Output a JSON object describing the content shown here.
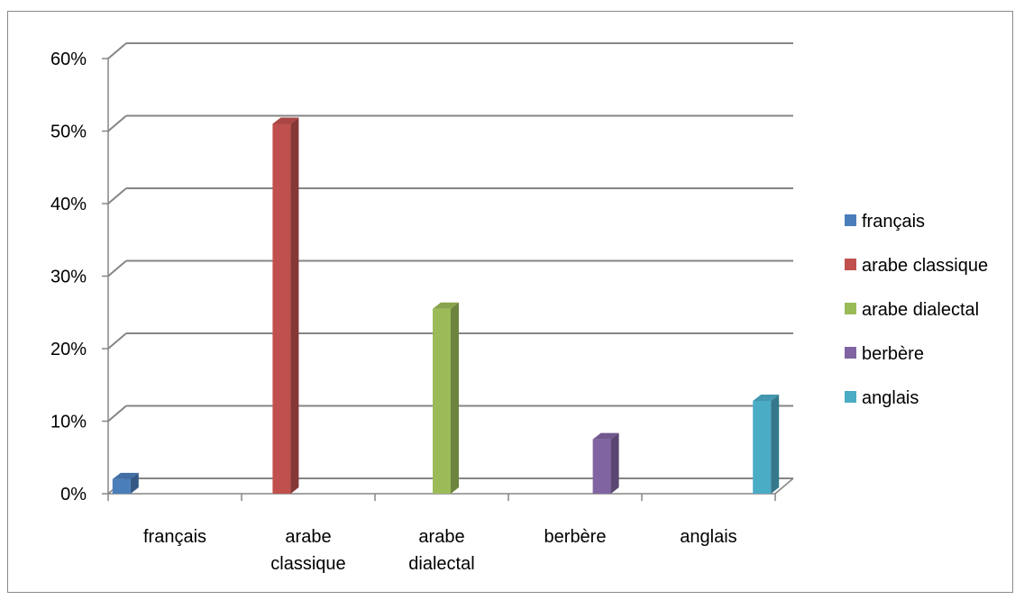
{
  "chart_data": {
    "type": "bar",
    "categories": [
      "français",
      "arabe classique",
      "arabe dialectal",
      "berbère",
      "anglais"
    ],
    "category_lines": [
      [
        "français"
      ],
      [
        "arabe",
        "classique"
      ],
      [
        "arabe",
        "dialectal"
      ],
      [
        "berbère"
      ],
      [
        "anglais"
      ]
    ],
    "series": [
      {
        "name": "français",
        "values": [
          2,
          null,
          null,
          null,
          null
        ]
      },
      {
        "name": "arabe classique",
        "values": [
          null,
          51,
          null,
          null,
          null
        ]
      },
      {
        "name": "arabe dialectal",
        "values": [
          null,
          null,
          25.5,
          null,
          null
        ]
      },
      {
        "name": "berbère",
        "values": [
          null,
          null,
          null,
          7.5,
          null
        ]
      },
      {
        "name": "anglais",
        "values": [
          null,
          null,
          null,
          null,
          12.8
        ]
      }
    ],
    "ylim": [
      0,
      60
    ],
    "yticks": [
      "0%",
      "10%",
      "20%",
      "30%",
      "40%",
      "50%",
      "60%"
    ],
    "grid": true,
    "legend": "right",
    "colors": {
      "français": "#4a7ebb",
      "arabe classique": "#c0504d",
      "arabe dialectal": "#9bbb59",
      "berbère": "#8064a2",
      "anglais": "#4bacc6",
      "grid": "#858585",
      "axis": "#858585"
    }
  }
}
